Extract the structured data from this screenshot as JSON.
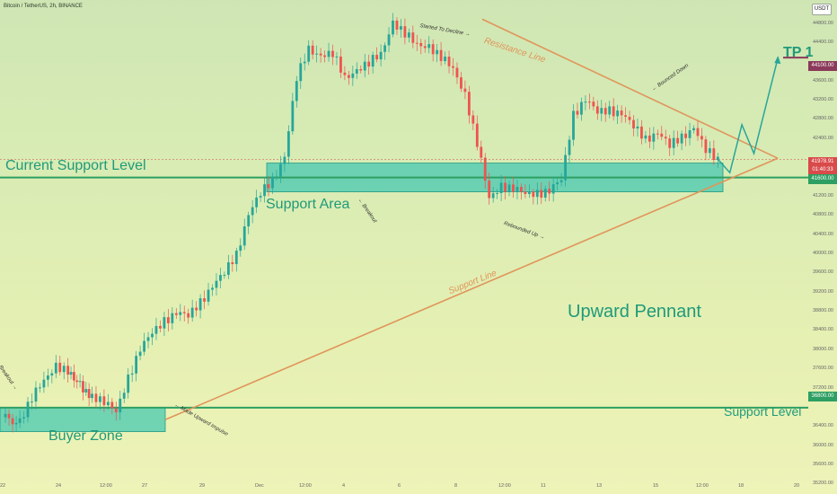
{
  "header": {
    "symbol": "Bitcoin / TetherUS, 2h, BINANCE",
    "currency_button": "USDT"
  },
  "annotations": {
    "current_support_level": "Current Support Level",
    "support_area": "Support Area",
    "buyer_zone": "Buyer Zone",
    "support_level": "Support Level",
    "upward_pennant": "Upward Pennant",
    "tp1": "TP 1",
    "resistance_line": "Resistance Line",
    "support_line": "Support Line",
    "started_to_decline": "Started To Decline →",
    "bounced_down": "← Bounced Down",
    "breakout_1": "Breakout →",
    "breakout_2": "← Breakout",
    "rebounded_up": "Rebounded Up →",
    "made_upward_impulse": "← Made Upward Impulse"
  },
  "price_boxes": {
    "tp": "44100.00",
    "current_price": "41978.91",
    "countdown": "01:40:33",
    "support": "41600.00",
    "lower_support": "36800.00"
  },
  "chart_data": {
    "type": "candlestick",
    "y_ticks": [
      "44800.00",
      "44400.00",
      "43600.00",
      "43200.00",
      "42800.00",
      "42400.00",
      "41200.00",
      "40800.00",
      "40400.00",
      "40000.00",
      "39600.00",
      "39200.00",
      "38800.00",
      "38400.00",
      "38000.00",
      "37600.00",
      "37200.00",
      "36400.00",
      "36000.00",
      "35600.00",
      "35200.00"
    ],
    "x_ticks": [
      "22",
      "24",
      "12:00",
      "27",
      "29",
      "Dec",
      "12:00",
      "4",
      "6",
      "8",
      "12:00",
      "11",
      "13",
      "15",
      "12:00",
      "18",
      "20"
    ],
    "ylim": [
      35000,
      45300
    ],
    "levels": {
      "tp": 44100,
      "current_support": 41600,
      "lower_support": 36800
    },
    "path": [
      [
        0,
        36600
      ],
      [
        3,
        36500
      ],
      [
        5,
        37000
      ],
      [
        7,
        37400
      ],
      [
        9,
        37650
      ],
      [
        11,
        37550
      ],
      [
        12,
        37400
      ],
      [
        13,
        37300
      ],
      [
        14,
        37100
      ],
      [
        15,
        37050
      ],
      [
        17,
        36900
      ],
      [
        19,
        36750
      ],
      [
        21,
        37400
      ],
      [
        23,
        38000
      ],
      [
        25,
        38400
      ],
      [
        27,
        38600
      ],
      [
        29,
        38750
      ],
      [
        31,
        38750
      ],
      [
        33,
        39000
      ],
      [
        35,
        39300
      ],
      [
        37,
        39650
      ],
      [
        39,
        40000
      ],
      [
        41,
        40800
      ],
      [
        43,
        41300
      ],
      [
        45,
        41550
      ],
      [
        47,
        42000
      ],
      [
        49,
        43700
      ],
      [
        51,
        44300
      ],
      [
        53,
        44100
      ],
      [
        55,
        44200
      ],
      [
        57,
        43700
      ],
      [
        59,
        43800
      ],
      [
        61,
        44000
      ],
      [
        63,
        44200
      ],
      [
        65,
        44800
      ],
      [
        67,
        44600
      ],
      [
        69,
        44400
      ],
      [
        71,
        44300
      ],
      [
        73,
        44100
      ],
      [
        75,
        43900
      ],
      [
        77,
        43300
      ],
      [
        79,
        42300
      ],
      [
        81,
        41200
      ],
      [
        83,
        41400
      ],
      [
        85,
        41350
      ],
      [
        87,
        41300
      ],
      [
        89,
        41250
      ],
      [
        91,
        41300
      ],
      [
        93,
        41600
      ],
      [
        95,
        42900
      ],
      [
        97,
        43200
      ],
      [
        99,
        43000
      ],
      [
        101,
        43000
      ],
      [
        103,
        42900
      ],
      [
        105,
        42700
      ],
      [
        107,
        42400
      ],
      [
        109,
        42500
      ],
      [
        111,
        42300
      ],
      [
        113,
        42450
      ],
      [
        115,
        42600
      ],
      [
        117,
        42200
      ],
      [
        119,
        41980
      ]
    ],
    "forecast": [
      [
        119,
        41980
      ],
      [
        121,
        41700
      ],
      [
        123,
        42700
      ],
      [
        125,
        42100
      ],
      [
        129,
        44100
      ]
    ]
  }
}
